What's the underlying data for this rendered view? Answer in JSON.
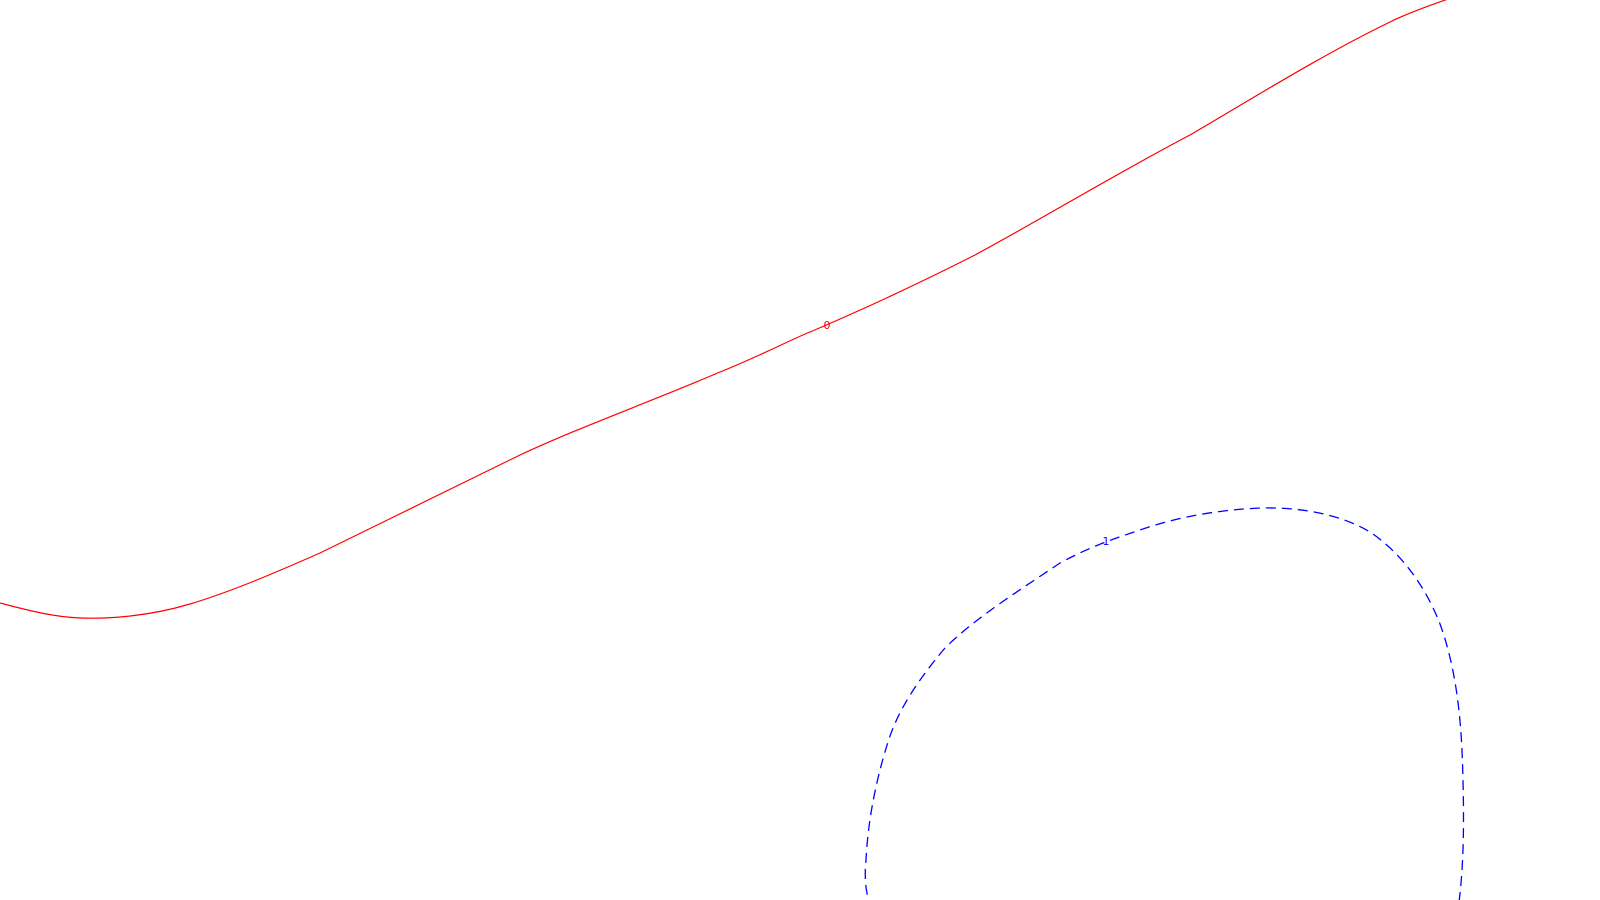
{
  "chart_data": {
    "type": "contour",
    "title": "",
    "xlabel": "",
    "ylabel": "",
    "grid": false,
    "legend": "none",
    "series": [
      {
        "level_label": "0",
        "color": "#ff0000",
        "line_style": "solid"
      },
      {
        "level_label": "1",
        "color": "#0000ff",
        "line_style": "dashed"
      }
    ]
  }
}
